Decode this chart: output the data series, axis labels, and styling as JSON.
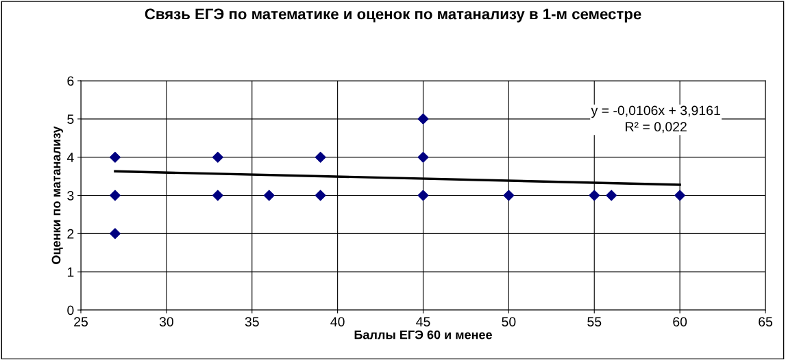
{
  "chart_data": {
    "type": "scatter",
    "title": "Связь ЕГЭ по математике и оценок по матанализу в 1-м семестре",
    "xlabel": "Баллы ЕГЭ 60 и менее",
    "ylabel": "Оценки по матанализу",
    "series": [
      {
        "color": "#000080",
        "marker": "diamond",
        "x": [
          27,
          27,
          27,
          33,
          33,
          36,
          39,
          39,
          45,
          45,
          45,
          50,
          55,
          56,
          60
        ],
        "values": [
          4,
          3,
          2,
          4,
          3,
          3,
          4,
          3,
          5,
          4,
          3,
          3,
          3,
          3,
          3
        ]
      },
      {
        "type": "line",
        "color": "#000000",
        "marker": "none",
        "line_style": "solid",
        "x": [
          27,
          60
        ],
        "values": [
          3.63,
          3.28
        ]
      }
    ],
    "xlim": [
      25,
      65
    ],
    "xticks": [
      25,
      30,
      35,
      40,
      45,
      50,
      55,
      60,
      65
    ],
    "ylim": [
      0,
      6
    ],
    "yticks": [
      0,
      1,
      2,
      3,
      4,
      5,
      6
    ],
    "grid": true,
    "legend": false,
    "annotations": [
      "y = -0,0106x + 3,9161\nR² = 0,022"
    ]
  }
}
